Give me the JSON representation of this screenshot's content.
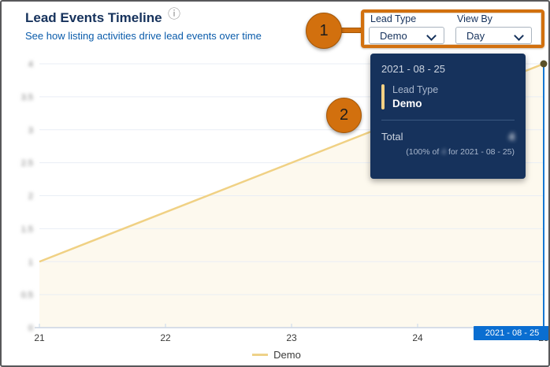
{
  "header": {
    "title": "Lead Events Timeline",
    "subtitle": "See how listing activities drive lead events over time",
    "info_icon_glyph": "ⓘ"
  },
  "controls": {
    "lead_type": {
      "label": "Lead Type",
      "value": "Demo"
    },
    "view_by": {
      "label": "View By",
      "value": "Day"
    }
  },
  "callouts": {
    "step1": "1",
    "step2": "2"
  },
  "tooltip": {
    "date": "2021 - 08 - 25",
    "series_label": "Lead Type",
    "series_value": "Demo",
    "total_label": "Total",
    "total_value": "4",
    "total_value_redacted": true,
    "breakdown_prefix": "(100% of",
    "breakdown_redacted_value": "4",
    "breakdown_suffix": "for 2021 - 08 - 25)"
  },
  "x_axis_badge": "2021 - 08 - 25",
  "legend": {
    "items": [
      {
        "label": "Demo",
        "color": "#eed289"
      }
    ]
  },
  "chart_data": {
    "type": "area",
    "title": "Lead Events Timeline",
    "series": [
      {
        "name": "Demo",
        "points": [
          [
            21,
            1
          ],
          [
            25,
            4
          ]
        ]
      }
    ],
    "xticks": [
      "21",
      "22",
      "23",
      "24",
      "25"
    ],
    "yticks": [
      0,
      0.5,
      1,
      1.5,
      2,
      2.5,
      3,
      3.5,
      4
    ],
    "xlim": [
      21,
      25
    ],
    "ylim": [
      0,
      4
    ],
    "xlabel": "",
    "ylabel": "",
    "grid": "horizontal",
    "legend_position": "bottom",
    "line_color": "#f0d184",
    "area_color": "#fdf9ee",
    "marker_color": "#5b5128",
    "gridline_color": "#e9eef5",
    "axis_color": "#d7dee8",
    "hover_x": 25,
    "hover_line_color": "#1677d2",
    "y_labels_blurred": true
  },
  "colors": {
    "accent_orange": "#d2700e",
    "tooltip_bg": "#16325c",
    "badge_bg": "#0a6ed1",
    "title_navy": "#16325c",
    "subtitle_blue": "#0b5cab"
  }
}
